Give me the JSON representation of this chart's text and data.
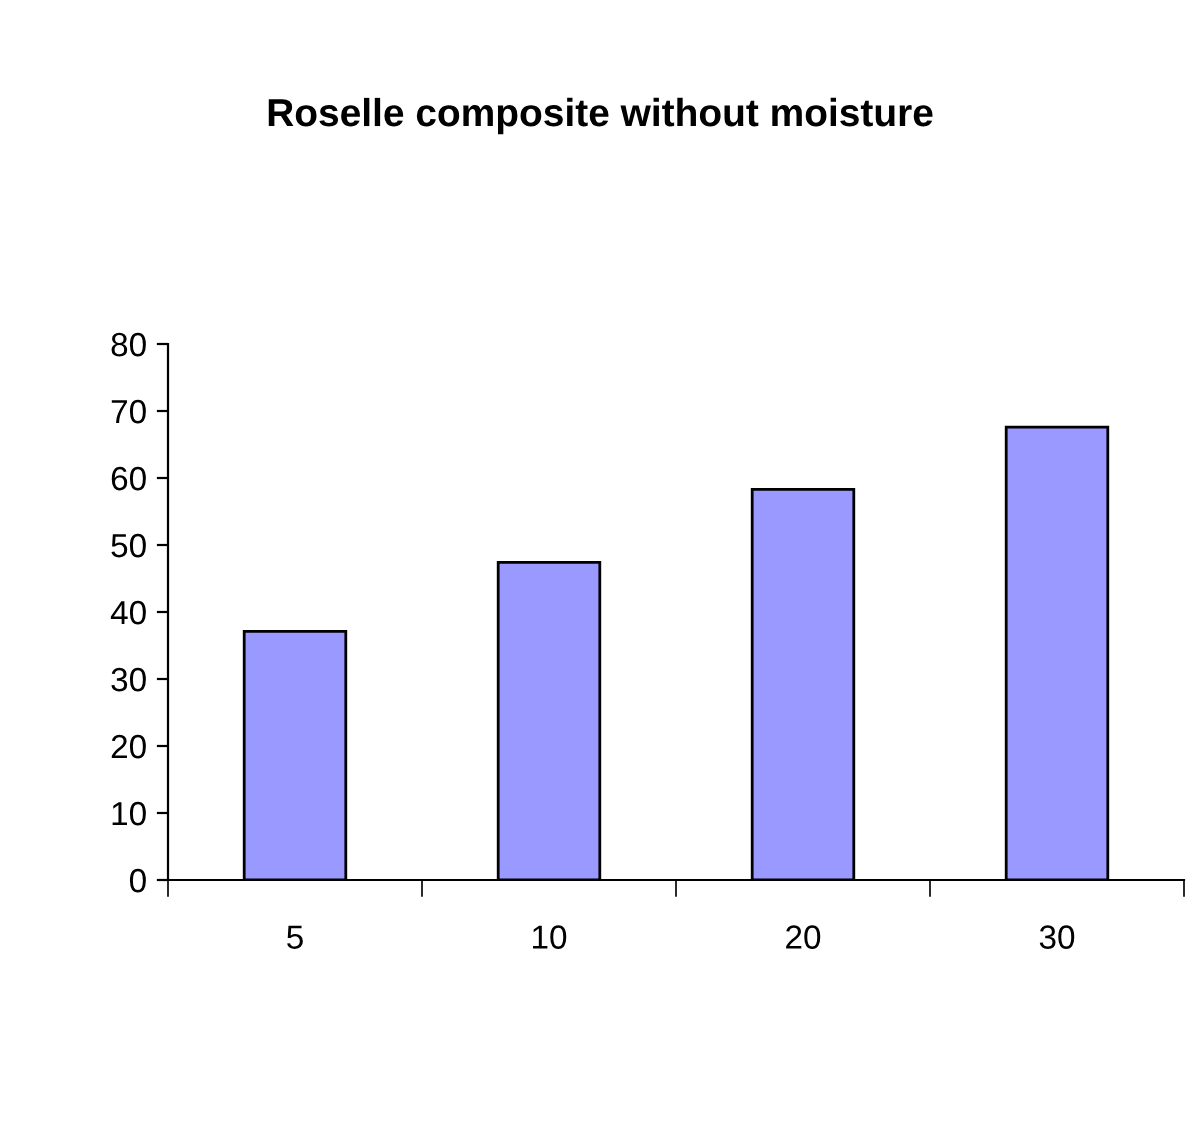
{
  "chart_data": {
    "type": "bar",
    "title": "Roselle composite without moisture",
    "categories": [
      "5",
      "10",
      "20",
      "30"
    ],
    "values": [
      37.1,
      47.4,
      58.3,
      67.6
    ],
    "color": "#9999ff",
    "ylim": [
      0,
      80
    ],
    "yticks": [
      0,
      10,
      20,
      30,
      40,
      50,
      60,
      70,
      80
    ],
    "grid": false,
    "legend": false
  }
}
